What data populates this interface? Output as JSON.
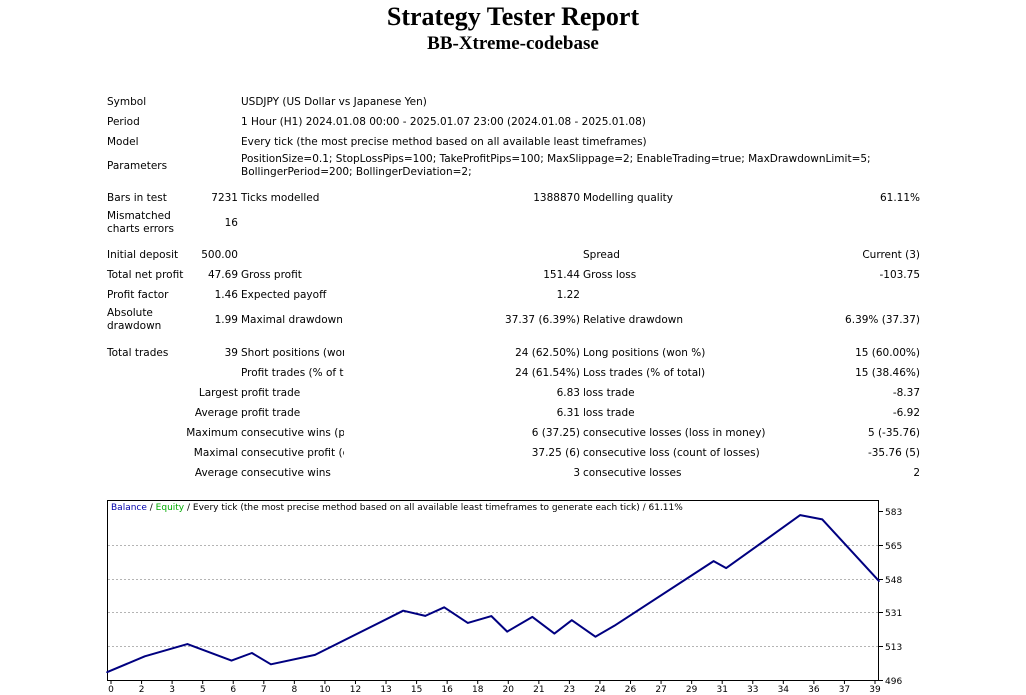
{
  "header": {
    "title": "Strategy Tester Report",
    "subtitle": "BB-Xtreme-codebase"
  },
  "info": {
    "symbol_label": "Symbol",
    "symbol_value": "USDJPY (US Dollar vs Japanese Yen)",
    "period_label": "Period",
    "period_value": "1 Hour (H1) 2024.01.08 00:00 - 2025.01.07 23:00 (2024.01.08 - 2025.01.08)",
    "model_label": "Model",
    "model_value": "Every tick (the most precise method based on all available least timeframes)",
    "parameters_label": "Parameters",
    "parameters_value": "PositionSize=0.1; StopLossPips=100; TakeProfitPips=100; MaxSlippage=2; EnableTrading=true; MaxDrawdownLimit=5; BollingerPeriod=200; BollingerDeviation=2;"
  },
  "stats": {
    "bars_label": "Bars in test",
    "bars_value": "7231",
    "ticks_label": "Ticks modelled",
    "ticks_value": "1388870",
    "quality_label": "Modelling quality",
    "quality_value": "61.11%",
    "mismatch_label": "Mismatched charts errors",
    "mismatch_value": "16",
    "deposit_label": "Initial deposit",
    "deposit_value": "500.00",
    "spread_label": "Spread",
    "spread_value": "Current (3)",
    "net_label": "Total net profit",
    "net_value": "47.69",
    "gross_profit_label": "Gross profit",
    "gross_profit_value": "151.44",
    "gross_loss_label": "Gross loss",
    "gross_loss_value": "-103.75",
    "pf_label": "Profit factor",
    "pf_value": "1.46",
    "payoff_label": "Expected payoff",
    "payoff_value": "1.22",
    "abs_dd_label": "Absolute drawdown",
    "abs_dd_value": "1.99",
    "max_dd_label": "Maximal drawdown",
    "max_dd_value": "37.37 (6.39%)",
    "rel_dd_label": "Relative drawdown",
    "rel_dd_value": "6.39% (37.37)"
  },
  "trades": {
    "total_label": "Total trades",
    "total_value": "39",
    "short_label": "Short positions (won %)",
    "short_value": "24 (62.50%)",
    "long_label": "Long positions (won %)",
    "long_value": "15 (60.00%)",
    "profit_trades_label": "Profit trades (% of total)",
    "profit_trades_value": "24 (61.54%)",
    "loss_trades_label": "Loss trades (% of total)",
    "loss_trades_value": "15 (38.46%)",
    "largest_prefix": "Largest",
    "largest_profit_label": "profit trade",
    "largest_profit_value": "6.83",
    "largest_loss_label": "loss trade",
    "largest_loss_value": "-8.37",
    "average_prefix": "Average",
    "avg_profit_label": "profit trade",
    "avg_profit_value": "6.31",
    "avg_loss_label": "loss trade",
    "avg_loss_value": "-6.92",
    "maximum_prefix": "Maximum",
    "max_wins_label": "consecutive wins (profit in money)",
    "max_wins_value": "6 (37.25)",
    "max_losses_label": "consecutive losses (loss in money)",
    "max_losses_value": "5 (-35.76)",
    "maximal_prefix": "Maximal",
    "maximal_profit_label": "consecutive profit (count of wins)",
    "maximal_profit_value": "37.25 (6)",
    "maximal_loss_label": "consecutive loss (count of losses)",
    "maximal_loss_value": "-35.76 (5)",
    "average2_prefix": "Average",
    "avg_wins_label": "consecutive wins",
    "avg_wins_value": "3",
    "avg_losses_label": "consecutive losses",
    "avg_losses_value": "2"
  },
  "legend": {
    "balance": "Balance",
    "sep1": " / ",
    "equity": "Equity",
    "rest": " / Every tick (the most precise method based on all available least timeframes to generate each tick) / 61.11%"
  },
  "colors": {
    "balance": "#000080",
    "equity": "#00aa00",
    "grid": "#b4b4b4",
    "border": "#000000"
  },
  "chart_data": {
    "type": "line",
    "x_ticks": [
      "0",
      "2",
      "3",
      "5",
      "6",
      "7",
      "8",
      "10",
      "12",
      "13",
      "15",
      "16",
      "18",
      "20",
      "21",
      "23",
      "24",
      "26",
      "27",
      "29",
      "31",
      "33",
      "34",
      "36",
      "37",
      "39"
    ],
    "y_ticks": [
      "583",
      "565",
      "548",
      "531",
      "513",
      "496"
    ],
    "ylim": [
      496,
      583
    ],
    "series": [
      {
        "name": "Balance",
        "x": [
          0,
          2.4,
          5.1,
          7.9,
          9.2,
          10.4,
          13.2,
          18.8,
          20.2,
          21.4,
          22.9,
          24.4,
          25.4,
          27.0,
          28.4,
          29.5,
          31.0,
          32.2,
          38.5,
          39.3,
          44.0,
          45.4,
          49.0
        ],
        "values": [
          500.0,
          508.2,
          514.5,
          506.0,
          509.9,
          504.1,
          508.9,
          531.7,
          529.0,
          533.4,
          525.4,
          528.9,
          520.9,
          528.5,
          519.9,
          526.8,
          518.3,
          523.9,
          557.2,
          553.6,
          580.9,
          578.7,
          546.9
        ]
      }
    ]
  }
}
